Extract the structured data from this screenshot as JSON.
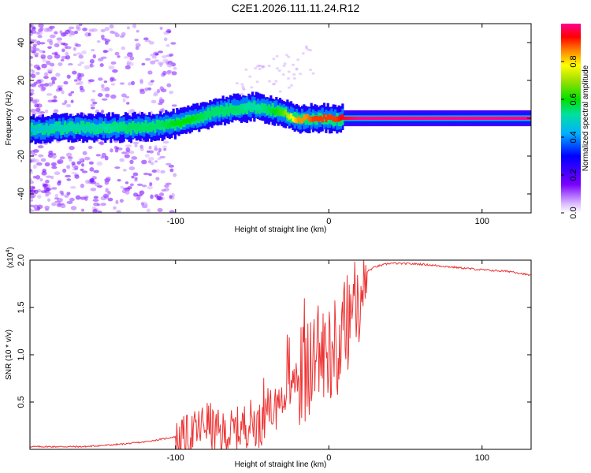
{
  "title": "C2E1.2026.111.11.24.R12",
  "chart_data": [
    {
      "type": "heatmap",
      "title": "C2E1.2026.111.11.24.R12",
      "xlabel": "Height of straight line (km)",
      "ylabel": "Frequency (Hz)",
      "xlim": [
        -195,
        132
      ],
      "ylim": [
        -50,
        50
      ],
      "x_ticks": [
        -100,
        0,
        100
      ],
      "x_tick_labels": [
        "-100",
        "0",
        "100"
      ],
      "y_ticks": [
        -40,
        -20,
        0,
        20,
        40
      ],
      "y_tick_labels": [
        "-40",
        "-20",
        "0",
        "20",
        "40"
      ],
      "colorbar": {
        "label": "Normalized spectral amplitude",
        "range": [
          0,
          1
        ],
        "ticks": [
          0.0,
          0.2,
          0.4,
          0.6,
          0.8
        ],
        "tick_labels": [
          "0.0",
          "0.2",
          "0.4",
          "0.6",
          "0.8"
        ]
      },
      "ridge": {
        "x": [
          -195,
          -170,
          -150,
          -130,
          -110,
          -100,
          -90,
          -80,
          -70,
          -60,
          -50,
          -40,
          -30,
          -25,
          -20,
          -15,
          -10,
          -5,
          0,
          5,
          10,
          20,
          40,
          60,
          80,
          100,
          120,
          130
        ],
        "frequency": [
          -6,
          -5,
          -5,
          -5,
          -4,
          -3,
          -1,
          2,
          4,
          5,
          6,
          5,
          3,
          1,
          -1,
          0,
          0,
          0,
          0,
          -1,
          0,
          0,
          0,
          0,
          0,
          0,
          0,
          0
        ],
        "amplitude": [
          0.45,
          0.5,
          0.5,
          0.55,
          0.55,
          0.6,
          0.6,
          0.55,
          0.55,
          0.55,
          0.5,
          0.55,
          0.65,
          0.75,
          0.85,
          0.85,
          0.9,
          0.9,
          0.9,
          0.9,
          0.95,
          1.0,
          1.0,
          1.0,
          1.0,
          1.0,
          1.0,
          1.0
        ]
      }
    },
    {
      "type": "line",
      "series": [
        {
          "name": "SNR",
          "color": "#ee3333"
        }
      ],
      "xlabel": "Height of straight line (km)",
      "ylabel": "SNR (10 * v/v)",
      "y_multiplier_label": "(x10",
      "y_multiplier_exponent": "4",
      "y_multiplier_close": ")",
      "xlim": [
        -195,
        132
      ],
      "ylim": [
        0,
        2.0
      ],
      "x_ticks": [
        -100,
        0,
        100
      ],
      "x_tick_labels": [
        "-100",
        "0",
        "100"
      ],
      "y_ticks": [
        0.5,
        1.0,
        1.5,
        2.0
      ],
      "y_tick_labels": [
        "0.5",
        "1.0",
        "1.5",
        "2.0"
      ],
      "envelope": {
        "x": [
          -195,
          -160,
          -140,
          -120,
          -105,
          -95,
          -85,
          -80,
          -75,
          -70,
          -60,
          -50,
          -45,
          -40,
          -30,
          -20,
          -15,
          -10,
          -5,
          0,
          5,
          10,
          15,
          20,
          25,
          30,
          40,
          60,
          80,
          100,
          120,
          132
        ],
        "y": [
          0.03,
          0.03,
          0.05,
          0.08,
          0.12,
          0.15,
          0.25,
          0.35,
          0.25,
          0.2,
          0.25,
          0.35,
          0.3,
          0.45,
          0.55,
          0.85,
          0.9,
          1.0,
          1.1,
          1.15,
          1.2,
          1.35,
          1.6,
          1.75,
          1.88,
          1.93,
          1.97,
          1.96,
          1.93,
          1.9,
          1.88,
          1.84
        ]
      }
    }
  ]
}
